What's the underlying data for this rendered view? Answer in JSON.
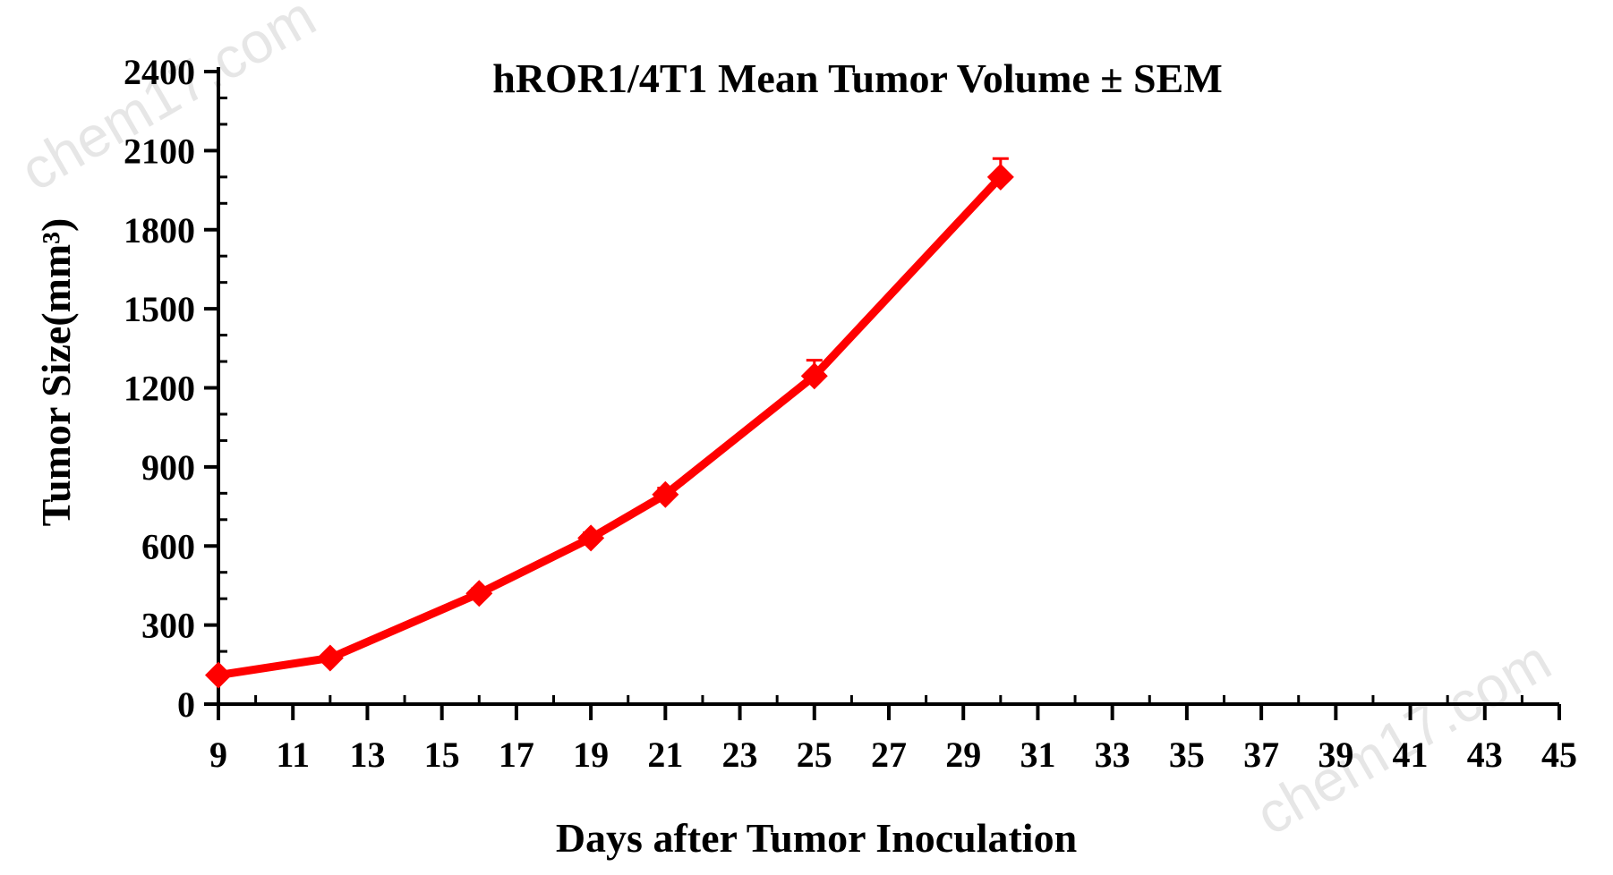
{
  "chart_data": {
    "type": "line",
    "title": "hROR1/4T1 Mean Tumor Volume ± SEM",
    "xlabel": "Days after Tumor Inoculation",
    "ylabel": "Tumor Size(mm³)",
    "xlim": [
      9,
      45
    ],
    "ylim": [
      0,
      2400
    ],
    "x_ticks": [
      9,
      11,
      13,
      15,
      17,
      19,
      21,
      23,
      25,
      27,
      29,
      31,
      33,
      35,
      37,
      39,
      41,
      43,
      45
    ],
    "y_ticks": [
      0,
      300,
      600,
      900,
      1200,
      1500,
      1800,
      2100,
      2400
    ],
    "grid": false,
    "series": [
      {
        "name": "",
        "color": "#ff0000",
        "marker": "diamond",
        "x": [
          9,
          12,
          16,
          19,
          21,
          25,
          30
        ],
        "y": [
          110,
          175,
          420,
          630,
          795,
          1245,
          2000
        ],
        "sem": [
          10,
          12,
          18,
          20,
          25,
          60,
          70
        ]
      }
    ]
  },
  "watermark": [
    "chem17.com",
    "chem17.com"
  ]
}
